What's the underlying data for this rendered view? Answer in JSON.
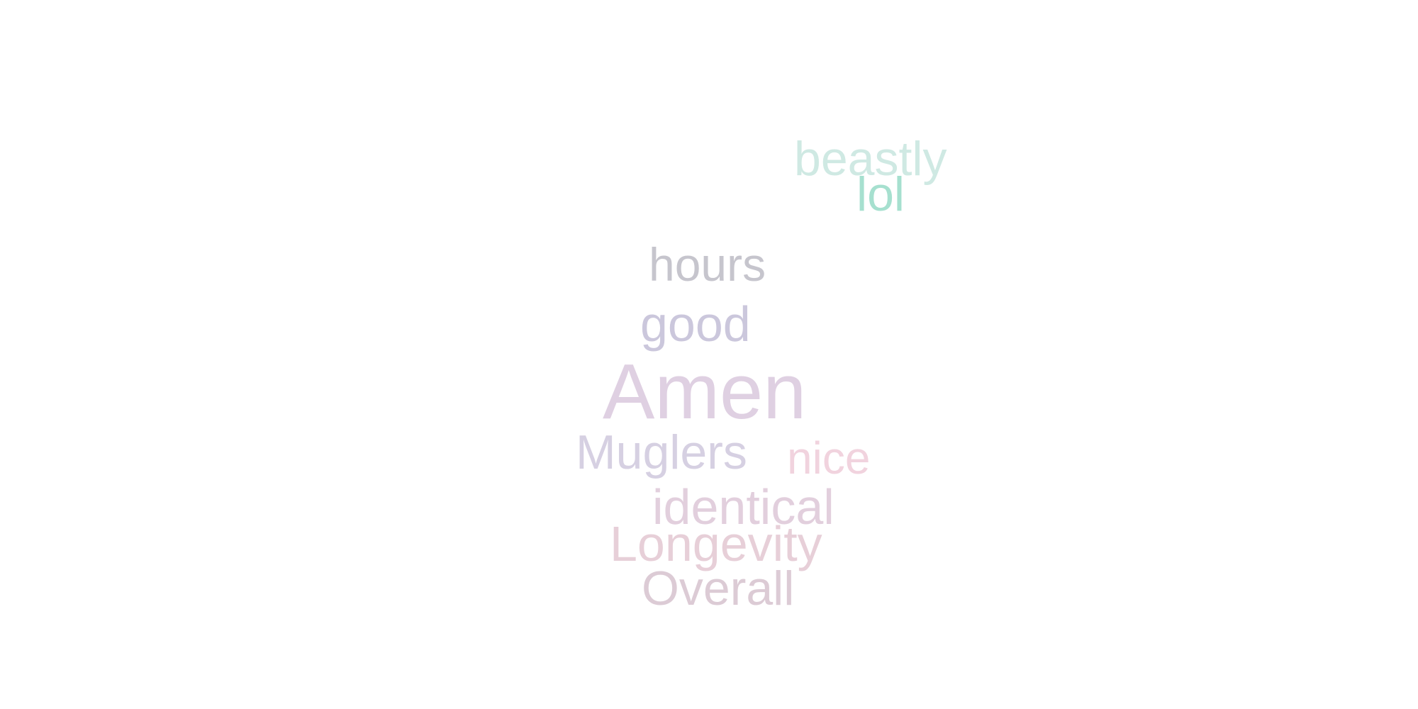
{
  "wordcloud": {
    "words": [
      {
        "text": "beastly",
        "color": "#cfe9e3"
      },
      {
        "text": "lol",
        "color": "#a6e0cf"
      },
      {
        "text": "hours",
        "color": "#c6c5cd"
      },
      {
        "text": "good",
        "color": "#cbc7dc"
      },
      {
        "text": "Amen",
        "color": "#dfd0e2"
      },
      {
        "text": "Muglers",
        "color": "#d6d0e2"
      },
      {
        "text": "nice",
        "color": "#f1d3de"
      },
      {
        "text": "identical",
        "color": "#e2cfdd"
      },
      {
        "text": "Longevity",
        "color": "#e7cfd8"
      },
      {
        "text": "Overall",
        "color": "#dccbd5"
      }
    ]
  }
}
